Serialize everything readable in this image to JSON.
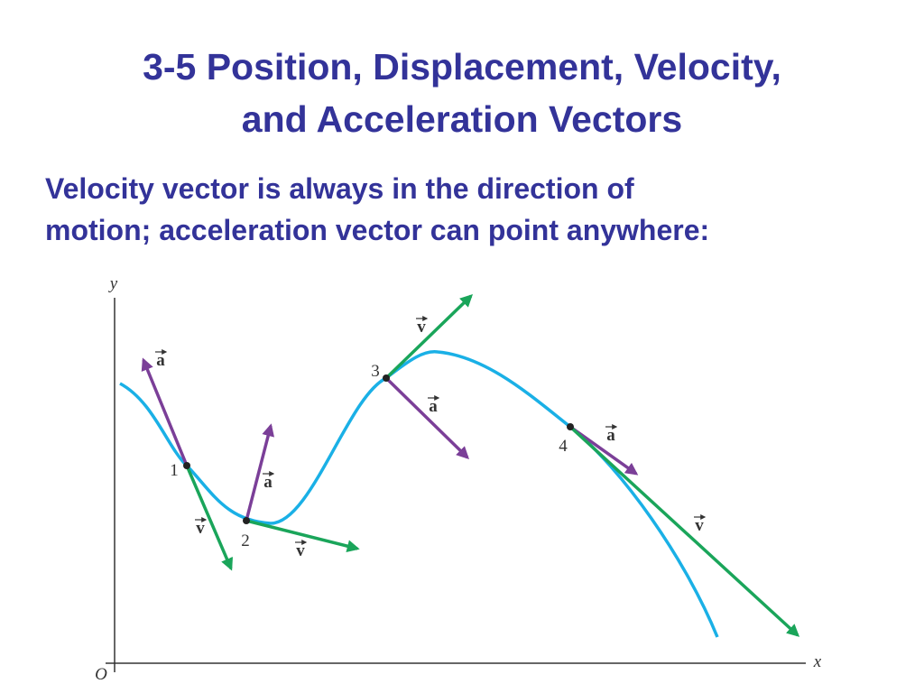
{
  "title": [
    "3-5 Position, Displacement, Velocity,",
    "and Acceleration Vectors"
  ],
  "subtitle": [
    "Velocity vector is always in the direction of",
    "motion; acceleration vector can point anywhere:"
  ],
  "diagram": {
    "axes": {
      "y": "y",
      "x": "x",
      "origin": "O"
    },
    "points": [
      {
        "label": "1",
        "a": "a",
        "v": "v"
      },
      {
        "label": "2",
        "a": "a",
        "v": "v"
      },
      {
        "label": "3",
        "a": "a",
        "v": "v"
      },
      {
        "label": "4",
        "a": "a",
        "v": "v"
      }
    ]
  }
}
